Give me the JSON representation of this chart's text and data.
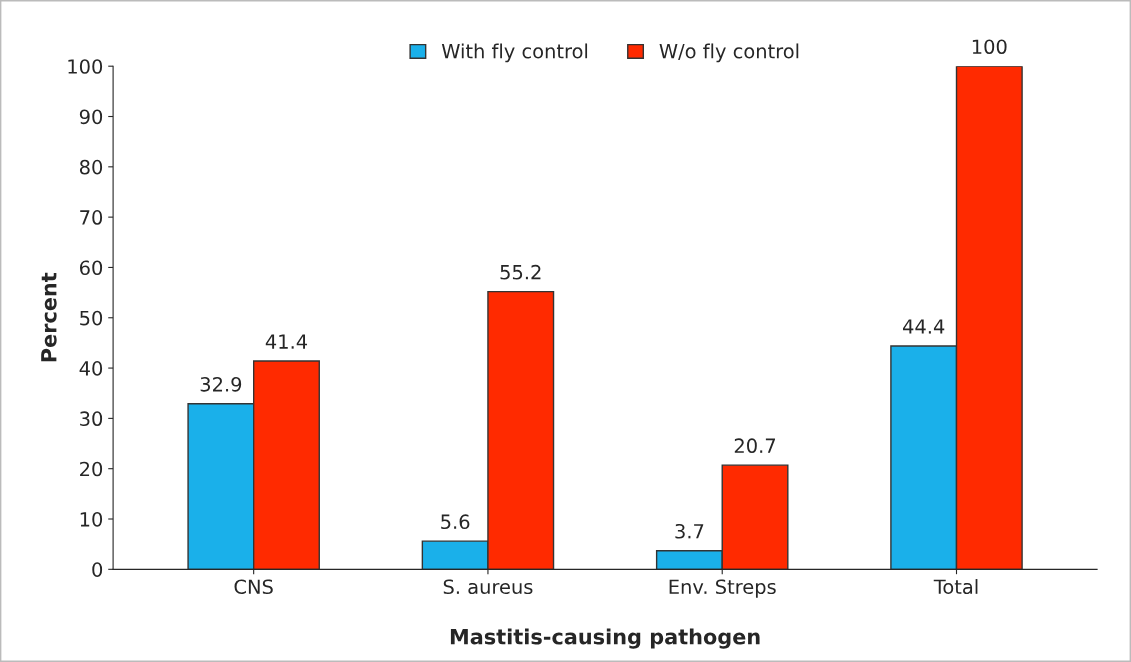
{
  "chart_data": {
    "type": "bar",
    "xlabel": "Mastitis-causing pathogen",
    "ylabel": "Percent",
    "categories": [
      "CNS",
      "S. aureus",
      "Env. Streps",
      "Total"
    ],
    "series": [
      {
        "name": "With fly control",
        "color": "#1ab0ea",
        "values": [
          32.9,
          5.6,
          3.7,
          44.4
        ]
      },
      {
        "name": "W/o fly control",
        "color": "#ff2a00",
        "values": [
          41.4,
          55.2,
          20.7,
          100
        ]
      }
    ],
    "ylim": [
      0,
      100
    ],
    "yticks": [
      0,
      10,
      20,
      30,
      40,
      50,
      60,
      70,
      80,
      90,
      100
    ],
    "data_labels": true,
    "legend": "top",
    "grid": false
  }
}
